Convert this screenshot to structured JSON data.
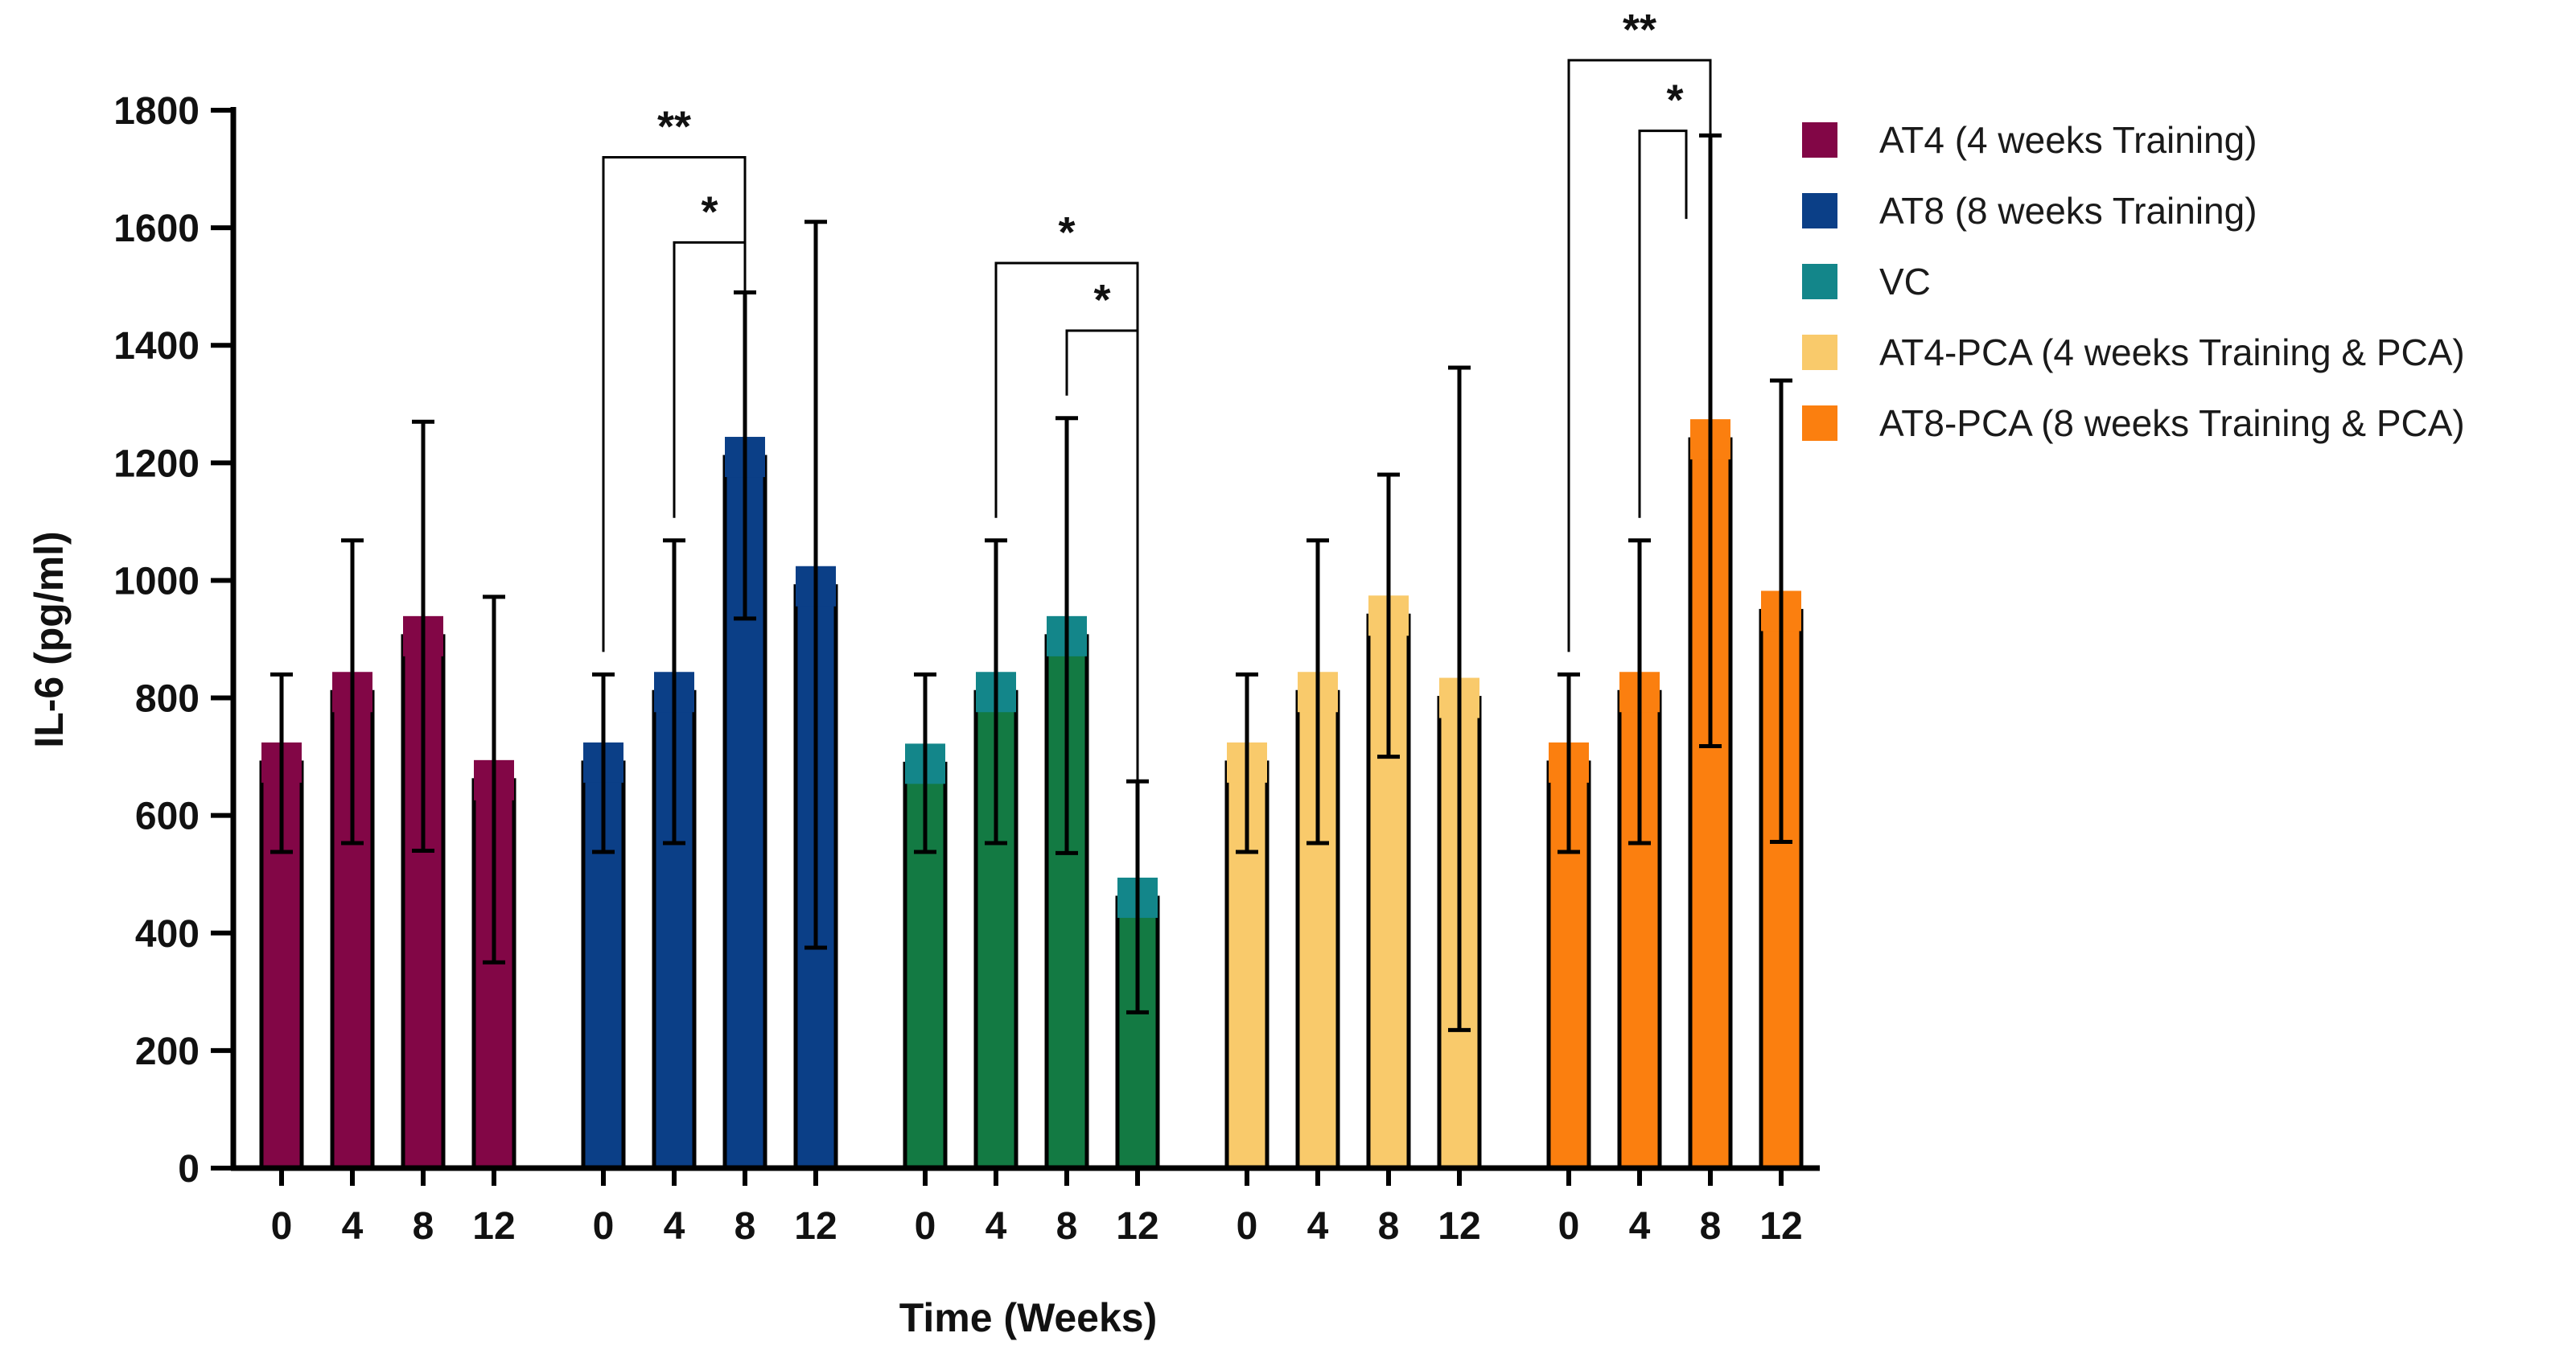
{
  "chart_data": {
    "type": "bar",
    "ylabel": "IL-6 (pg/ml)",
    "xlabel": "Time (Weeks)",
    "ylim": [
      0,
      1800
    ],
    "yticks": [
      "0",
      "200",
      "400",
      "600",
      "800",
      "1000",
      "1200",
      "1400",
      "1600",
      "1800"
    ],
    "categories": [
      "0",
      "4",
      "8",
      "12"
    ],
    "legend_position": "top-right",
    "series": [
      {
        "name": "AT4 (4 weeks Training)",
        "legend_color": "#820646",
        "bar_color": "#820646",
        "values": [
          690,
          810,
          905,
          660
        ],
        "err_up": [
          840,
          1068,
          1270,
          972
        ],
        "err_low": [
          538,
          553,
          540,
          350
        ]
      },
      {
        "name": "AT8 (8 weeks Training)",
        "legend_color": "#0b3f87",
        "bar_color": "#0b3f87",
        "values": [
          690,
          810,
          1210,
          990
        ],
        "err_up": [
          840,
          1068,
          1490,
          1610
        ],
        "err_low": [
          538,
          553,
          935,
          375
        ]
      },
      {
        "name": "VC",
        "legend_color": "#13868a",
        "bar_color": "#137a43",
        "values": [
          688,
          810,
          905,
          460
        ],
        "err_up": [
          840,
          1068,
          1276,
          658
        ],
        "err_low": [
          538,
          553,
          536,
          265
        ]
      },
      {
        "name": "AT4-PCA (4 weeks Training & PCA)",
        "legend_color": "#f9ca6b",
        "bar_color": "#f9ca6b",
        "values": [
          690,
          810,
          940,
          800
        ],
        "err_up": [
          840,
          1068,
          1180,
          1362
        ],
        "err_low": [
          538,
          553,
          700,
          235
        ]
      },
      {
        "name": "AT8-PCA (8 weeks Training & PCA)",
        "legend_color": "#fb7f0f",
        "bar_color": "#fb7f0f",
        "values": [
          690,
          810,
          1240,
          948
        ],
        "err_up": [
          840,
          1068,
          1757,
          1340
        ],
        "err_low": [
          538,
          553,
          718,
          555
        ]
      }
    ],
    "significance": [
      {
        "group": 1,
        "from": 0,
        "to": 2,
        "label": "**",
        "y": 1720,
        "end_y": 1720
      },
      {
        "group": 1,
        "from": 1,
        "to": 2,
        "label": "*",
        "y": 1575,
        "end_y": 1575
      },
      {
        "group": 2,
        "from": 1,
        "to": 3,
        "label": "*",
        "y": 1540,
        "end_y": 1540
      },
      {
        "group": 2,
        "from": 2,
        "to": 3,
        "label": "*",
        "y": 1425,
        "end_y": 1425
      },
      {
        "group": 4,
        "from": 0,
        "to": 2,
        "label": "**",
        "y": 1885,
        "end_y": 1885
      },
      {
        "group": 4,
        "from": 1,
        "to": 2,
        "label": "*",
        "y": 1765,
        "end_y": 1690
      }
    ]
  }
}
